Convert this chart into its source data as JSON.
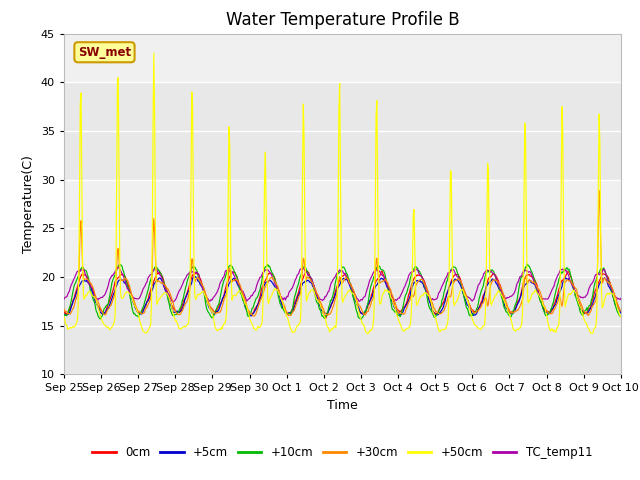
{
  "title": "Water Temperature Profile B",
  "xlabel": "Time",
  "ylabel": "Temperature(C)",
  "ylim": [
    10,
    45
  ],
  "n_days": 15,
  "series_colors": {
    "0cm": "#ff0000",
    "+5cm": "#0000cc",
    "+10cm": "#00bb00",
    "+30cm": "#ff8800",
    "+50cm": "#ffff00",
    "TC_temp11": "#aa00aa"
  },
  "legend_label": "SW_met",
  "legend_facecolor": "#ffff99",
  "legend_edgecolor": "#cc9900",
  "legend_text_color": "#880000",
  "background_color": "#ffffff",
  "plot_bg_color": "#e8e8e8",
  "band_color_light": "#f0f0f0",
  "band_color_dark": "#e0e0e0",
  "grid_color": "#ffffff",
  "tick_labels": [
    "Sep 25",
    "Sep 26",
    "Sep 27",
    "Sep 28",
    "Sep 29",
    "Sep 30",
    "Oct 1",
    "Oct 2",
    "Oct 3",
    "Oct 4",
    "Oct 5",
    "Oct 6",
    "Oct 7",
    "Oct 8",
    "Oct 9",
    "Oct 10"
  ],
  "tick_positions": [
    0,
    1,
    2,
    3,
    4,
    5,
    6,
    7,
    8,
    9,
    10,
    11,
    12,
    13,
    14,
    15
  ],
  "yticks": [
    10,
    15,
    20,
    25,
    30,
    35,
    40,
    45
  ],
  "title_fontsize": 12,
  "axis_fontsize": 9,
  "tick_fontsize": 8,
  "peak_times_50": [
    0.45,
    1.45,
    2.42,
    3.45,
    4.45,
    5.42,
    6.45,
    7.42,
    8.42,
    9.42,
    10.42,
    11.42,
    12.42,
    13.42,
    14.42
  ],
  "peak_heights_50": [
    40,
    42,
    43,
    40,
    36,
    33,
    38,
    40.5,
    39,
    27.5,
    32,
    32.5,
    36.5,
    38,
    37
  ],
  "peak_times_30": [
    0.45,
    1.45,
    2.42,
    3.45,
    4.45,
    5.42,
    6.45,
    7.42,
    8.42,
    9.42,
    10.42,
    11.42,
    12.42,
    13.42,
    14.42
  ],
  "peak_heights_30": [
    26,
    23,
    26,
    22,
    21,
    19,
    22,
    20,
    22,
    18,
    18,
    17,
    20,
    17,
    29
  ]
}
